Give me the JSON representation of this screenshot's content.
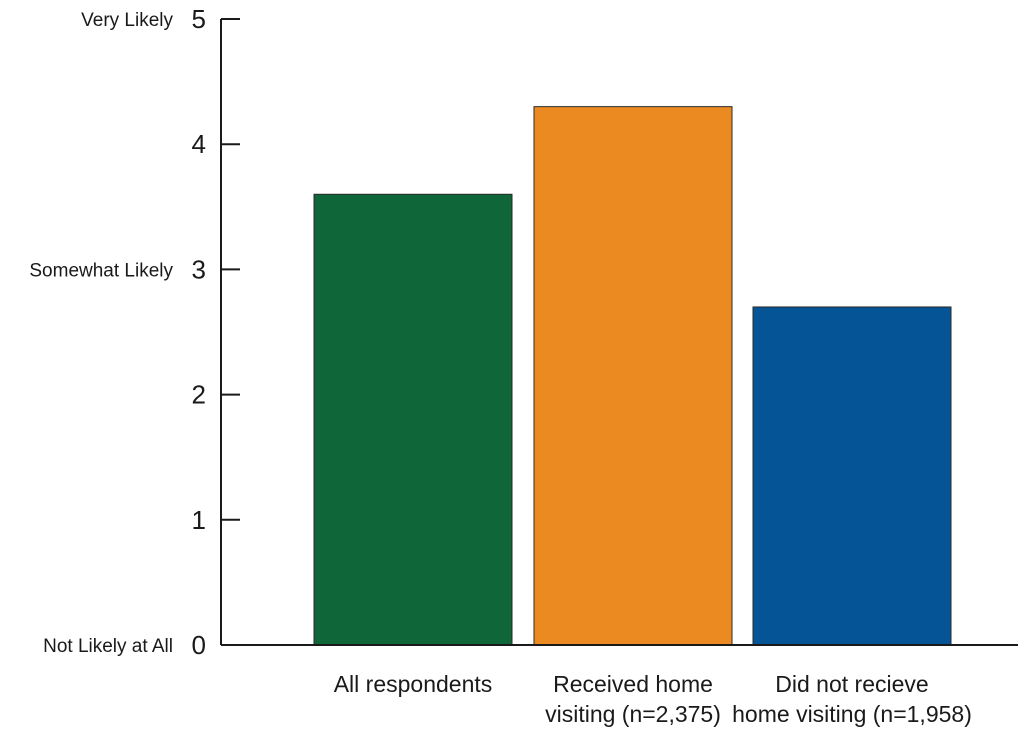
{
  "chart_data": {
    "type": "bar",
    "categories": [
      [
        "All respondents"
      ],
      [
        "Received home",
        "visiting (n=2,375)"
      ],
      [
        "Did not recieve",
        "home visiting (n=1,958)"
      ]
    ],
    "values": [
      3.6,
      4.3,
      2.7
    ],
    "colors": [
      "#0f6639",
      "#ec8a22",
      "#045496"
    ],
    "ylim": [
      0,
      5
    ],
    "yticks": [
      0,
      1,
      2,
      3,
      4,
      5
    ],
    "ytick_words": [
      {
        "value": 5,
        "text": "Very Likely"
      },
      {
        "value": 3,
        "text": "Somewhat Likely"
      },
      {
        "value": 0,
        "text": "Not Likely at All"
      }
    ],
    "grid": false,
    "title": "",
    "xlabel": "",
    "ylabel": ""
  }
}
